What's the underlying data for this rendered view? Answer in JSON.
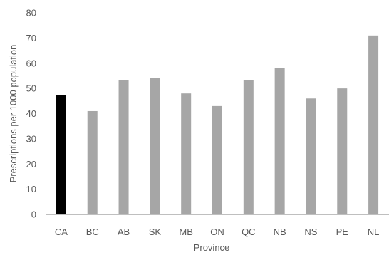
{
  "chart_data": {
    "type": "bar",
    "title": "",
    "xlabel": "Province",
    "ylabel": "Prescriptions per 1000 population",
    "ylim": [
      0,
      80
    ],
    "ytick_step": 10,
    "grid": false,
    "legend": "none",
    "categories": [
      "CA",
      "BC",
      "AB",
      "SK",
      "MB",
      "ON",
      "QC",
      "NB",
      "NS",
      "PE",
      "NL"
    ],
    "values": [
      47.3,
      41,
      53.3,
      54,
      48,
      43,
      53.3,
      58,
      46,
      50,
      71
    ],
    "colors": [
      "#000000",
      "#a6a6a6",
      "#a6a6a6",
      "#a6a6a6",
      "#a6a6a6",
      "#a6a6a6",
      "#a6a6a6",
      "#a6a6a6",
      "#a6a6a6",
      "#a6a6a6",
      "#a6a6a6"
    ],
    "axis_color": "#bfbfbf",
    "text_color": "#595959"
  }
}
